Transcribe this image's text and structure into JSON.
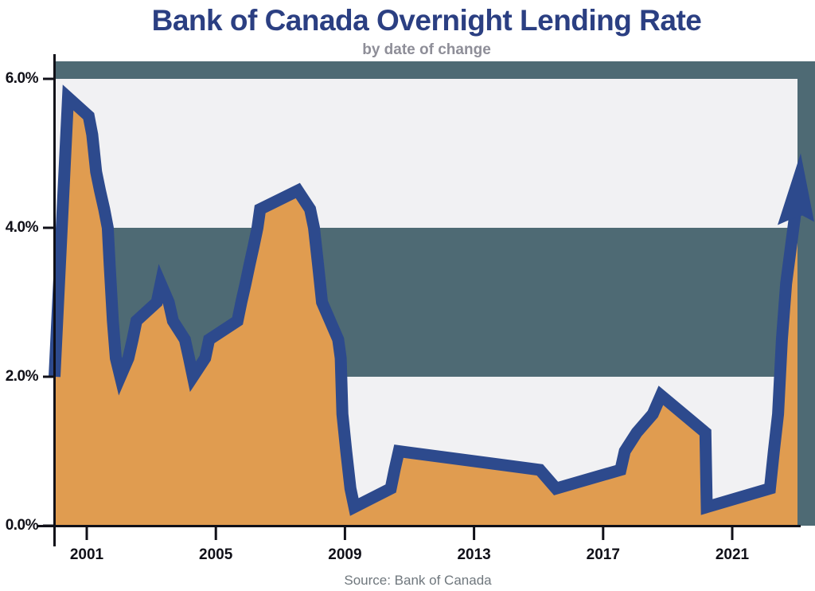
{
  "chart_data": {
    "type": "area",
    "title": "Bank of Canada Overnight Lending Rate",
    "subtitle": "by date of change",
    "source": "Source: Bank of Canada",
    "grid": "off",
    "legend": "none",
    "xlim": [
      2000.0,
      2023.6
    ],
    "ylim": [
      0,
      6.2
    ],
    "y_ticks": [
      {
        "label": "0.0%",
        "value": 0
      },
      {
        "label": "2.0%",
        "value": 2
      },
      {
        "label": "4.0%",
        "value": 4
      },
      {
        "label": "6.0%",
        "value": 6
      }
    ],
    "x_ticks": [
      {
        "label": "2001",
        "year": 2001
      },
      {
        "label": "2005",
        "year": 2005
      },
      {
        "label": "2009",
        "year": 2009
      },
      {
        "label": "2013",
        "year": 2013
      },
      {
        "label": "2017",
        "year": 2017
      },
      {
        "label": "2021",
        "year": 2021
      }
    ],
    "background_stripes": {
      "light_bands_pct": [
        [
          0,
          2
        ],
        [
          4,
          6
        ]
      ],
      "dark_bands_pct": [
        [
          2,
          4
        ],
        [
          6,
          6.2
        ]
      ]
    },
    "series": [
      {
        "name": "Overnight lending rate",
        "unit": "%",
        "points": [
          [
            2000.0,
            2.0
          ],
          [
            2000.42,
            5.75
          ],
          [
            2001.06,
            5.5
          ],
          [
            2001.17,
            5.25
          ],
          [
            2001.29,
            4.75
          ],
          [
            2001.41,
            4.5
          ],
          [
            2001.54,
            4.25
          ],
          [
            2001.65,
            4.0
          ],
          [
            2001.71,
            3.5
          ],
          [
            2001.81,
            2.75
          ],
          [
            2001.9,
            2.25
          ],
          [
            2002.04,
            2.0
          ],
          [
            2002.29,
            2.25
          ],
          [
            2002.42,
            2.5
          ],
          [
            2002.54,
            2.75
          ],
          [
            2003.17,
            3.0
          ],
          [
            2003.29,
            3.25
          ],
          [
            2003.54,
            3.0
          ],
          [
            2003.67,
            2.75
          ],
          [
            2004.04,
            2.5
          ],
          [
            2004.17,
            2.25
          ],
          [
            2004.29,
            2.0
          ],
          [
            2004.67,
            2.25
          ],
          [
            2004.79,
            2.5
          ],
          [
            2005.67,
            2.75
          ],
          [
            2005.79,
            3.0
          ],
          [
            2005.92,
            3.25
          ],
          [
            2006.04,
            3.5
          ],
          [
            2006.17,
            3.75
          ],
          [
            2006.29,
            4.0
          ],
          [
            2006.37,
            4.25
          ],
          [
            2007.54,
            4.5
          ],
          [
            2007.92,
            4.25
          ],
          [
            2008.04,
            4.0
          ],
          [
            2008.17,
            3.5
          ],
          [
            2008.29,
            3.0
          ],
          [
            2008.79,
            2.5
          ],
          [
            2008.87,
            2.25
          ],
          [
            2008.92,
            1.5
          ],
          [
            2009.04,
            1.0
          ],
          [
            2009.17,
            0.5
          ],
          [
            2009.29,
            0.25
          ],
          [
            2010.42,
            0.5
          ],
          [
            2010.54,
            0.75
          ],
          [
            2010.67,
            1.0
          ],
          [
            2015.04,
            0.75
          ],
          [
            2015.54,
            0.5
          ],
          [
            2017.54,
            0.75
          ],
          [
            2017.67,
            1.0
          ],
          [
            2018.04,
            1.25
          ],
          [
            2018.54,
            1.5
          ],
          [
            2018.79,
            1.75
          ],
          [
            2020.17,
            1.25
          ],
          [
            2020.21,
            0.25
          ],
          [
            2022.17,
            0.5
          ],
          [
            2022.29,
            1.0
          ],
          [
            2022.42,
            1.5
          ],
          [
            2022.54,
            2.5
          ],
          [
            2022.67,
            3.25
          ],
          [
            2022.79,
            3.75
          ],
          [
            2022.92,
            4.25
          ],
          [
            2023.04,
            4.5
          ]
        ]
      }
    ],
    "annotation": {
      "type": "up-arrow",
      "meaning": "rate rising at end of series",
      "tip_year": 2023.12,
      "tip_value": 5.0
    },
    "colors": {
      "area": "#e09c50",
      "line": "#2d4a8d",
      "plot_dark": "#4e6a74",
      "stripe_light": "#f1f1f3",
      "title": "#2b3f82",
      "subtitle": "#8e8e98",
      "source": "#6f777d",
      "axis": "#101018",
      "tick_label": "#101018"
    }
  }
}
